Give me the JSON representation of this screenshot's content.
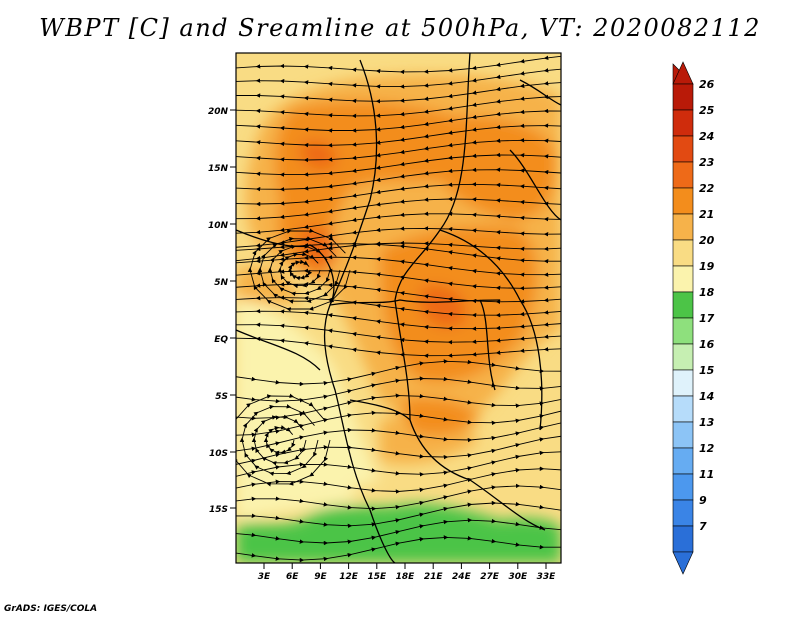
{
  "title": "WBPT [C] and Sreamline at 500hPa, VT: 2020082112",
  "credit": "GrADS: IGES/COLA",
  "map": {
    "lat_labels": [
      "20N",
      "15N",
      "10N",
      "5N",
      "EQ",
      "5S",
      "10S",
      "15S"
    ],
    "lon_labels": [
      "3E",
      "6E",
      "9E",
      "12E",
      "15E",
      "18E",
      "21E",
      "24E",
      "27E",
      "30E",
      "33E"
    ]
  },
  "colorbar": {
    "labels": [
      "7",
      "9",
      "11",
      "12",
      "13",
      "14",
      "15",
      "16",
      "17",
      "18",
      "19",
      "20",
      "21",
      "22",
      "23",
      "24",
      "25",
      "26"
    ],
    "colors": [
      "#2a6fd8",
      "#3a84e6",
      "#4c98ee",
      "#66acf2",
      "#8cc4f6",
      "#b6dcfa",
      "#dff2fb",
      "#c6efb2",
      "#8ee07d",
      "#4cc447",
      "#fbf3ad",
      "#f9dc84",
      "#f6b24a",
      "#f38d1c",
      "#ee6a18",
      "#e24a12",
      "#cf2c0c",
      "#b91a08"
    ]
  }
}
